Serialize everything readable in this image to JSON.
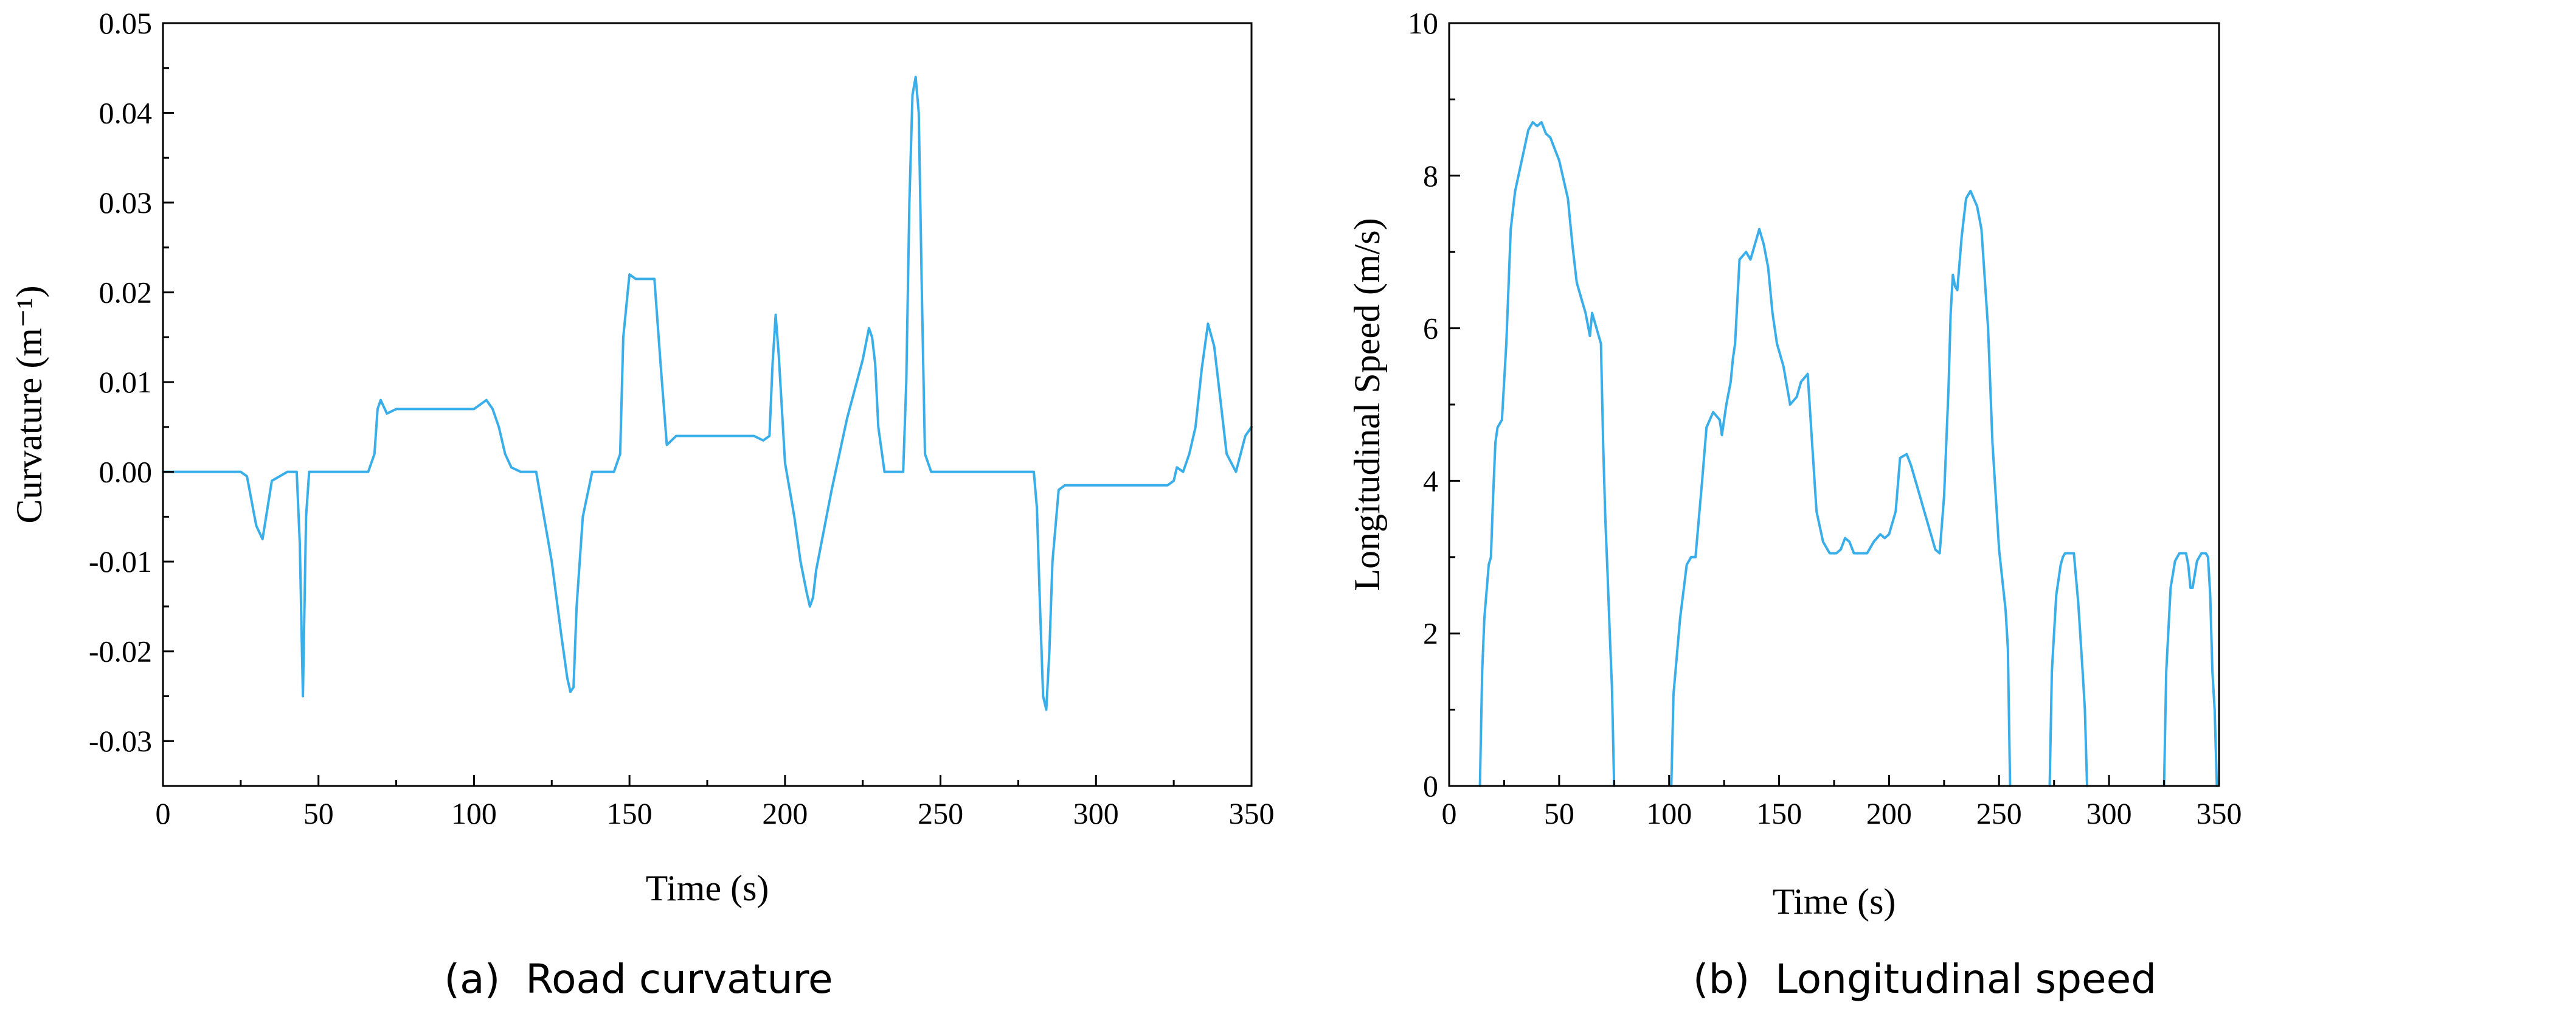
{
  "colors": {
    "series": "#3aaee8",
    "axis": "#000000"
  },
  "chart_data": [
    {
      "type": "line",
      "caption": "(a)  Road curvature",
      "xlabel": "Time (s)",
      "ylabel": "Curvature (m⁻¹)",
      "xlim": [
        0,
        350
      ],
      "ylim": [
        -0.035,
        0.05
      ],
      "xticks": [
        "0",
        "50",
        "100",
        "150",
        "200",
        "250",
        "300",
        "350"
      ],
      "yticks": [
        "-0.03",
        "-0.02",
        "-0.01",
        "0.00",
        "0.01",
        "0.02",
        "0.03",
        "0.04",
        "0.05"
      ],
      "grid": false,
      "series": [
        {
          "x": [
            0,
            10,
            20,
            25,
            27,
            30,
            32,
            35,
            40,
            42,
            43,
            44,
            45,
            46,
            47,
            50,
            60,
            66,
            68,
            69,
            70,
            72,
            75,
            80,
            90,
            100,
            104,
            106,
            108,
            110,
            112,
            115,
            120,
            125,
            128,
            130,
            131,
            132,
            133,
            135,
            138,
            140,
            145,
            147,
            148,
            150,
            152,
            155,
            158,
            160,
            162,
            165,
            175,
            185,
            190,
            193,
            195,
            196,
            197,
            198,
            200,
            203,
            205,
            207,
            208,
            209,
            210,
            215,
            220,
            225,
            227,
            228,
            229,
            230,
            232,
            235,
            238,
            239,
            240,
            241,
            242,
            243,
            244,
            245,
            247,
            250,
            260,
            270,
            280,
            281,
            282,
            283,
            284,
            285,
            286,
            288,
            290,
            300,
            310,
            320,
            323,
            325,
            326,
            328,
            330,
            332,
            334,
            336,
            338,
            340,
            342,
            345,
            348,
            350
          ],
          "values": [
            0.0,
            0.0,
            0.0,
            0.0,
            -0.0005,
            -0.006,
            -0.0075,
            -0.001,
            0.0,
            0.0,
            0.0,
            -0.008,
            -0.025,
            -0.005,
            0.0,
            0.0,
            0.0,
            0.0,
            0.002,
            0.007,
            0.008,
            0.0065,
            0.007,
            0.007,
            0.007,
            0.007,
            0.008,
            0.007,
            0.005,
            0.002,
            0.0005,
            0.0,
            0.0,
            -0.01,
            -0.018,
            -0.023,
            -0.0245,
            -0.024,
            -0.015,
            -0.005,
            0.0,
            0.0,
            0.0,
            0.002,
            0.015,
            0.022,
            0.0215,
            0.0215,
            0.0215,
            0.012,
            0.003,
            0.004,
            0.004,
            0.004,
            0.004,
            0.0035,
            0.004,
            0.012,
            0.0175,
            0.013,
            0.001,
            -0.005,
            -0.01,
            -0.0135,
            -0.015,
            -0.014,
            -0.011,
            -0.002,
            0.006,
            0.0125,
            0.016,
            0.015,
            0.012,
            0.005,
            0.0,
            0.0,
            0.0,
            0.01,
            0.03,
            0.042,
            0.044,
            0.04,
            0.02,
            0.002,
            0.0,
            0.0,
            0.0,
            0.0,
            0.0,
            -0.004,
            -0.015,
            -0.025,
            -0.0265,
            -0.02,
            -0.01,
            -0.002,
            -0.0015,
            -0.0015,
            -0.0015,
            -0.0015,
            -0.0015,
            -0.001,
            0.0005,
            0.0,
            0.002,
            0.005,
            0.0115,
            0.0165,
            0.014,
            0.008,
            0.002,
            0.0,
            0.004,
            0.005
          ]
        }
      ]
    },
    {
      "type": "line",
      "caption": "(b)  Longitudinal speed",
      "xlabel": "Time (s)",
      "ylabel": "Longitudinal Speed (m/s)",
      "xlim": [
        0,
        350
      ],
      "ylim": [
        0,
        10
      ],
      "xticks": [
        "0",
        "50",
        "100",
        "150",
        "200",
        "250",
        "300",
        "350"
      ],
      "yticks": [
        "0",
        "2",
        "4",
        "6",
        "8",
        "10"
      ],
      "grid": false,
      "segments": [
        {
          "x": [
            14,
            15,
            16,
            18,
            19,
            20,
            21,
            22,
            24,
            26,
            28,
            30,
            33,
            36,
            38,
            40,
            42,
            44,
            46,
            48,
            50,
            54,
            56,
            58,
            60,
            62,
            64,
            65,
            67,
            69,
            70,
            71,
            72,
            73,
            74,
            75
          ],
          "values": [
            0,
            1.5,
            2.2,
            2.9,
            3.0,
            3.8,
            4.5,
            4.7,
            4.8,
            5.8,
            7.3,
            7.8,
            8.2,
            8.6,
            8.7,
            8.65,
            8.7,
            8.55,
            8.5,
            8.35,
            8.2,
            7.7,
            7.1,
            6.6,
            6.4,
            6.2,
            5.9,
            6.2,
            6.0,
            5.8,
            4.5,
            3.5,
            2.8,
            2.0,
            1.3,
            0
          ]
        },
        {
          "x": [
            101,
            102,
            105,
            108,
            110,
            112,
            115,
            117,
            120,
            123,
            124,
            126,
            128,
            129,
            130,
            132,
            135,
            137,
            139,
            141,
            143,
            145,
            147,
            149,
            151,
            152,
            155,
            158,
            160,
            163,
            165,
            167,
            170,
            173,
            176,
            178,
            180,
            182,
            184,
            186,
            190,
            193,
            196,
            198,
            200,
            203,
            205,
            208,
            210,
            213,
            216,
            219,
            221,
            223,
            225,
            227,
            228,
            229,
            230,
            231,
            233,
            235,
            237,
            240,
            242,
            245,
            247,
            250,
            253,
            254,
            255
          ],
          "values": [
            0,
            1.2,
            2.2,
            2.9,
            3.0,
            3.0,
            4.0,
            4.7,
            4.9,
            4.8,
            4.6,
            5.0,
            5.3,
            5.6,
            5.8,
            6.9,
            7.0,
            6.9,
            7.1,
            7.3,
            7.1,
            6.8,
            6.2,
            5.8,
            5.6,
            5.5,
            5.0,
            5.1,
            5.3,
            5.4,
            4.5,
            3.6,
            3.2,
            3.05,
            3.05,
            3.1,
            3.25,
            3.2,
            3.05,
            3.05,
            3.05,
            3.2,
            3.3,
            3.25,
            3.3,
            3.6,
            4.3,
            4.35,
            4.2,
            3.9,
            3.6,
            3.3,
            3.1,
            3.05,
            3.8,
            5.2,
            6.2,
            6.7,
            6.55,
            6.5,
            7.2,
            7.7,
            7.8,
            7.6,
            7.3,
            6.0,
            4.5,
            3.1,
            2.3,
            1.8,
            0
          ]
        },
        {
          "x": [
            273,
            274,
            276,
            278,
            279,
            280,
            282,
            284,
            286,
            288,
            289,
            290
          ],
          "values": [
            0,
            1.5,
            2.5,
            2.9,
            3.0,
            3.05,
            3.05,
            3.05,
            2.4,
            1.5,
            1.0,
            0
          ]
        },
        {
          "x": [
            325,
            326,
            328,
            330,
            331,
            332,
            334,
            335,
            336,
            337,
            338,
            340,
            342,
            344,
            345,
            346,
            347,
            348,
            349
          ],
          "values": [
            0,
            1.5,
            2.6,
            2.95,
            3.0,
            3.05,
            3.05,
            3.05,
            2.9,
            2.6,
            2.6,
            2.95,
            3.05,
            3.05,
            3.0,
            2.5,
            1.5,
            1.0,
            0
          ]
        }
      ]
    }
  ]
}
